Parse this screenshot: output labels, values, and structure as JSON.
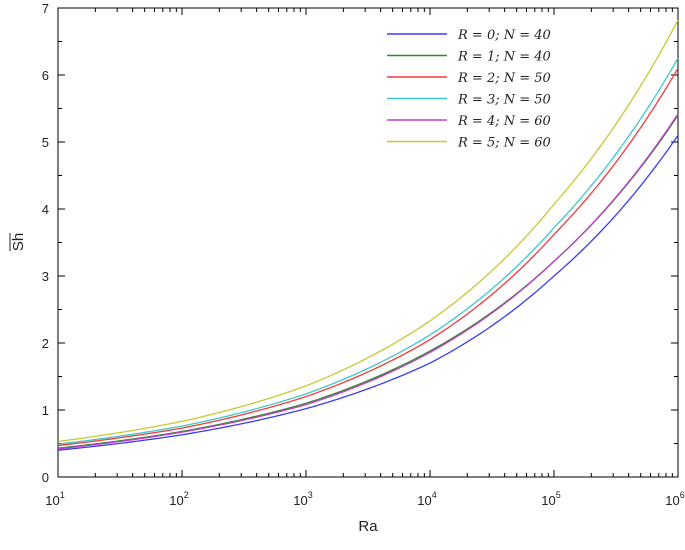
{
  "chart_data": {
    "type": "line",
    "title": "",
    "xlabel": "Ra",
    "ylabel": "Sh",
    "xscale": "log",
    "xlim": [
      10,
      1000000
    ],
    "ylim": [
      0,
      7
    ],
    "yticks": [
      0,
      1,
      2,
      3,
      4,
      5,
      6,
      7
    ],
    "xticks": [
      {
        "value": 10,
        "base": "10",
        "exp": "1"
      },
      {
        "value": 100,
        "base": "10",
        "exp": "2"
      },
      {
        "value": 1000,
        "base": "10",
        "exp": "3"
      },
      {
        "value": 10000,
        "base": "10",
        "exp": "4"
      },
      {
        "value": 100000,
        "base": "10",
        "exp": "5"
      },
      {
        "value": 1000000,
        "base": "10",
        "exp": "6"
      }
    ],
    "grid": false,
    "legend_position": "top-right",
    "x": [
      10,
      100,
      1000,
      10000,
      100000,
      1000000
    ],
    "series": [
      {
        "name": "R = 0; N = 40",
        "color": "#3c3cf0",
        "values": [
          0.4,
          0.63,
          1.02,
          1.7,
          3.0,
          5.1
        ]
      },
      {
        "name": "R = 1; N = 40",
        "color": "#2a8a2a",
        "values": [
          0.43,
          0.68,
          1.1,
          1.88,
          3.22,
          5.4
        ]
      },
      {
        "name": "R = 2; N = 50",
        "color": "#ee3b3b",
        "values": [
          0.47,
          0.73,
          1.2,
          2.05,
          3.62,
          6.1
        ]
      },
      {
        "name": "R = 3; N = 50",
        "color": "#3cc8c8",
        "values": [
          0.49,
          0.76,
          1.24,
          2.12,
          3.72,
          6.25
        ]
      },
      {
        "name": "R = 4; N = 60",
        "color": "#c23cc8",
        "values": [
          0.42,
          0.67,
          1.08,
          1.86,
          3.22,
          5.42
        ]
      },
      {
        "name": "R = 5; N = 60",
        "color": "#c8c832",
        "values": [
          0.53,
          0.83,
          1.36,
          2.33,
          4.07,
          6.82
        ]
      }
    ]
  }
}
